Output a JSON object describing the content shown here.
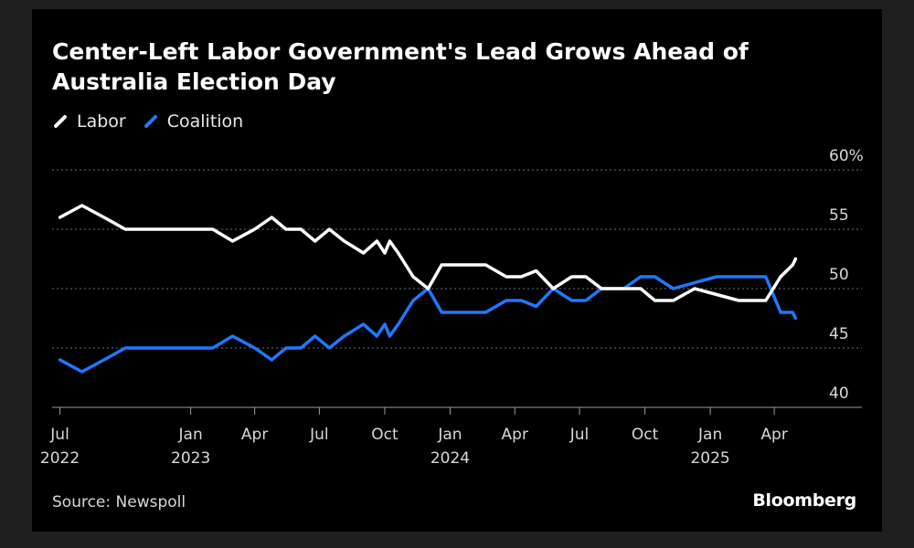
{
  "title": "Center-Left Labor Government's Lead Grows Ahead of Australia Election Day",
  "source": "Source: Newspoll",
  "brand": "Bloomberg",
  "chart_data": {
    "type": "line",
    "title": "Center-Left Labor Government's Lead Grows Ahead of Australia Election Day",
    "xlabel": "",
    "ylabel": "",
    "ylim": [
      40,
      60
    ],
    "xlim": [
      "2022-06-20",
      "2025-05-30"
    ],
    "y_ticks": [
      40,
      45,
      50,
      55,
      60
    ],
    "y_tick_labels": [
      "40",
      "45",
      "50",
      "55",
      "60%"
    ],
    "x_ticks": [
      {
        "date": "2022-07-01",
        "month": "Jul",
        "year": "2022"
      },
      {
        "date": "2023-01-01",
        "month": "Jan",
        "year": "2023"
      },
      {
        "date": "2023-04-01",
        "month": "Apr",
        "year": ""
      },
      {
        "date": "2023-07-01",
        "month": "Jul",
        "year": ""
      },
      {
        "date": "2023-10-01",
        "month": "Oct",
        "year": ""
      },
      {
        "date": "2024-01-01",
        "month": "Jan",
        "year": "2024"
      },
      {
        "date": "2024-04-01",
        "month": "Apr",
        "year": ""
      },
      {
        "date": "2024-07-01",
        "month": "Jul",
        "year": ""
      },
      {
        "date": "2024-10-01",
        "month": "Oct",
        "year": ""
      },
      {
        "date": "2025-01-01",
        "month": "Jan",
        "year": "2025"
      },
      {
        "date": "2025-04-01",
        "month": "Apr",
        "year": ""
      }
    ],
    "grid": true,
    "legend_position": "top-left",
    "series": [
      {
        "name": "Labor",
        "color": "#ffffff",
        "points": [
          [
            "2022-07-01",
            56
          ],
          [
            "2022-08-01",
            57
          ],
          [
            "2022-09-01",
            56
          ],
          [
            "2022-10-01",
            55
          ],
          [
            "2022-11-01",
            55
          ],
          [
            "2022-12-01",
            55
          ],
          [
            "2023-01-01",
            55
          ],
          [
            "2023-02-01",
            55
          ],
          [
            "2023-03-01",
            54
          ],
          [
            "2023-04-01",
            55
          ],
          [
            "2023-04-25",
            56
          ],
          [
            "2023-05-15",
            55
          ],
          [
            "2023-06-05",
            55
          ],
          [
            "2023-06-25",
            54
          ],
          [
            "2023-07-15",
            55
          ],
          [
            "2023-08-05",
            54
          ],
          [
            "2023-09-01",
            53
          ],
          [
            "2023-09-20",
            54
          ],
          [
            "2023-10-01",
            53
          ],
          [
            "2023-10-08",
            54
          ],
          [
            "2023-10-20",
            53
          ],
          [
            "2023-11-10",
            51
          ],
          [
            "2023-12-01",
            50
          ],
          [
            "2023-12-20",
            52
          ],
          [
            "2024-01-20",
            52
          ],
          [
            "2024-02-20",
            52
          ],
          [
            "2024-03-20",
            51
          ],
          [
            "2024-04-10",
            51
          ],
          [
            "2024-05-01",
            51.5
          ],
          [
            "2024-05-25",
            50
          ],
          [
            "2024-06-20",
            51
          ],
          [
            "2024-07-10",
            51
          ],
          [
            "2024-08-01",
            50
          ],
          [
            "2024-09-01",
            50
          ],
          [
            "2024-09-25",
            50
          ],
          [
            "2024-10-15",
            49
          ],
          [
            "2024-11-10",
            49
          ],
          [
            "2024-12-10",
            50
          ],
          [
            "2025-01-10",
            49.5
          ],
          [
            "2025-02-10",
            49
          ],
          [
            "2025-03-20",
            49
          ],
          [
            "2025-04-10",
            51
          ],
          [
            "2025-04-27",
            52
          ],
          [
            "2025-05-01",
            52.5
          ]
        ]
      },
      {
        "name": "Coalition",
        "color": "#1f78ff",
        "points": [
          [
            "2022-07-01",
            44
          ],
          [
            "2022-08-01",
            43
          ],
          [
            "2022-09-01",
            44
          ],
          [
            "2022-10-01",
            45
          ],
          [
            "2022-11-01",
            45
          ],
          [
            "2022-12-01",
            45
          ],
          [
            "2023-01-01",
            45
          ],
          [
            "2023-02-01",
            45
          ],
          [
            "2023-03-01",
            46
          ],
          [
            "2023-04-01",
            45
          ],
          [
            "2023-04-25",
            44
          ],
          [
            "2023-05-15",
            45
          ],
          [
            "2023-06-05",
            45
          ],
          [
            "2023-06-25",
            46
          ],
          [
            "2023-07-15",
            45
          ],
          [
            "2023-08-05",
            46
          ],
          [
            "2023-09-01",
            47
          ],
          [
            "2023-09-20",
            46
          ],
          [
            "2023-10-01",
            47
          ],
          [
            "2023-10-08",
            46
          ],
          [
            "2023-10-20",
            47
          ],
          [
            "2023-11-10",
            49
          ],
          [
            "2023-12-01",
            50
          ],
          [
            "2023-12-20",
            48
          ],
          [
            "2024-01-20",
            48
          ],
          [
            "2024-02-20",
            48
          ],
          [
            "2024-03-20",
            49
          ],
          [
            "2024-04-10",
            49
          ],
          [
            "2024-05-01",
            48.5
          ],
          [
            "2024-05-25",
            50
          ],
          [
            "2024-06-20",
            49
          ],
          [
            "2024-07-10",
            49
          ],
          [
            "2024-08-01",
            50
          ],
          [
            "2024-09-01",
            50
          ],
          [
            "2024-09-25",
            51
          ],
          [
            "2024-10-15",
            51
          ],
          [
            "2024-11-10",
            50
          ],
          [
            "2024-12-10",
            50.5
          ],
          [
            "2025-01-10",
            51
          ],
          [
            "2025-02-10",
            51
          ],
          [
            "2025-03-20",
            51
          ],
          [
            "2025-04-10",
            48
          ],
          [
            "2025-04-27",
            48
          ],
          [
            "2025-05-01",
            47.5
          ]
        ]
      }
    ]
  }
}
